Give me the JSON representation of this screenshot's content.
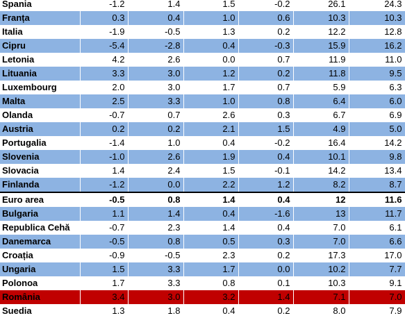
{
  "colors": {
    "stripe_blue": "#8db3e2",
    "plain_white": "#ffffff",
    "highlight_red": "#c00000"
  },
  "rows": [
    {
      "country": "Spania",
      "values": [
        "-1.2",
        "1.4",
        "1.5",
        "-0.2",
        "26.1",
        "24.3"
      ],
      "fill": "white",
      "bold": false
    },
    {
      "country": "Franța",
      "values": [
        "0.3",
        "0.4",
        "1.0",
        "0.6",
        "10.3",
        "10.3"
      ],
      "fill": "blue",
      "bold": false
    },
    {
      "country": "Italia",
      "values": [
        "-1.9",
        "-0.5",
        "1.3",
        "0.2",
        "12.2",
        "12.8"
      ],
      "fill": "white",
      "bold": false
    },
    {
      "country": "Cipru",
      "values": [
        "-5.4",
        "-2.8",
        "0.4",
        "-0.3",
        "15.9",
        "16.2"
      ],
      "fill": "blue",
      "bold": false
    },
    {
      "country": "Letonia",
      "values": [
        "4.2",
        "2.6",
        "0.0",
        "0.7",
        "11.9",
        "11.0"
      ],
      "fill": "white",
      "bold": false
    },
    {
      "country": "Lituania",
      "values": [
        "3.3",
        "3.0",
        "1.2",
        "0.2",
        "11.8",
        "9.5"
      ],
      "fill": "blue",
      "bold": false
    },
    {
      "country": "Luxembourg",
      "values": [
        "2.0",
        "3.0",
        "1.7",
        "0.7",
        "5.9",
        "6.3"
      ],
      "fill": "white",
      "bold": false
    },
    {
      "country": "Malta",
      "values": [
        "2.5",
        "3.3",
        "1.0",
        "0.8",
        "6.4",
        "6.0"
      ],
      "fill": "blue",
      "bold": false
    },
    {
      "country": "Olanda",
      "values": [
        "-0.7",
        "0.7",
        "2.6",
        "0.3",
        "6.7",
        "6.9"
      ],
      "fill": "white",
      "bold": false
    },
    {
      "country": "Austria",
      "values": [
        "0.2",
        "0.2",
        "2.1",
        "1.5",
        "4.9",
        "5.0"
      ],
      "fill": "blue",
      "bold": false
    },
    {
      "country": "Portugalia",
      "values": [
        "-1.4",
        "1.0",
        "0.4",
        "-0.2",
        "16.4",
        "14.2"
      ],
      "fill": "white",
      "bold": false
    },
    {
      "country": "Slovenia",
      "values": [
        "-1.0",
        "2.6",
        "1.9",
        "0.4",
        "10.1",
        "9.8"
      ],
      "fill": "blue",
      "bold": false
    },
    {
      "country": "Slovacia",
      "values": [
        "1.4",
        "2.4",
        "1.5",
        "-0.1",
        "14.2",
        "13.4"
      ],
      "fill": "white",
      "bold": false
    },
    {
      "country": "Finlanda",
      "values": [
        "-1.2",
        "0.0",
        "2.2",
        "1.2",
        "8.2",
        "8.7"
      ],
      "fill": "blue",
      "bold": false
    },
    {
      "country": "Euro area",
      "values": [
        "-0.5",
        "0.8",
        "1.4",
        "0.4",
        "12",
        "11.6"
      ],
      "fill": "white",
      "bold": true
    },
    {
      "country": "Bulgaria",
      "values": [
        "1.1",
        "1.4",
        "0.4",
        "-1.6",
        "13",
        "11.7"
      ],
      "fill": "blue",
      "bold": false
    },
    {
      "country": "Republica Cehă",
      "values": [
        "-0.7",
        "2.3",
        "1.4",
        "0.4",
        "7.0",
        "6.1"
      ],
      "fill": "white",
      "bold": false
    },
    {
      "country": "Danemarca",
      "values": [
        "-0.5",
        "0.8",
        "0.5",
        "0.3",
        "7.0",
        "6.6"
      ],
      "fill": "blue",
      "bold": false
    },
    {
      "country": "Croația",
      "values": [
        "-0.9",
        "-0.5",
        "2.3",
        "0.2",
        "17.3",
        "17.0"
      ],
      "fill": "white",
      "bold": false
    },
    {
      "country": "Ungaria",
      "values": [
        "1.5",
        "3.3",
        "1.7",
        "0.0",
        "10.2",
        "7.7"
      ],
      "fill": "blue",
      "bold": false
    },
    {
      "country": "Polonoa",
      "values": [
        "1.7",
        "3.3",
        "0.8",
        "0.1",
        "10.3",
        "9.1"
      ],
      "fill": "white",
      "bold": false
    },
    {
      "country": "România",
      "values": [
        "3.4",
        "3.0",
        "3.2",
        "1.4",
        "7.1",
        "7.0"
      ],
      "fill": "red",
      "bold": false
    },
    {
      "country": "Suedia",
      "values": [
        "1.3",
        "1.8",
        "0.4",
        "0.2",
        "8.0",
        "7.9"
      ],
      "fill": "white",
      "bold": false
    }
  ]
}
